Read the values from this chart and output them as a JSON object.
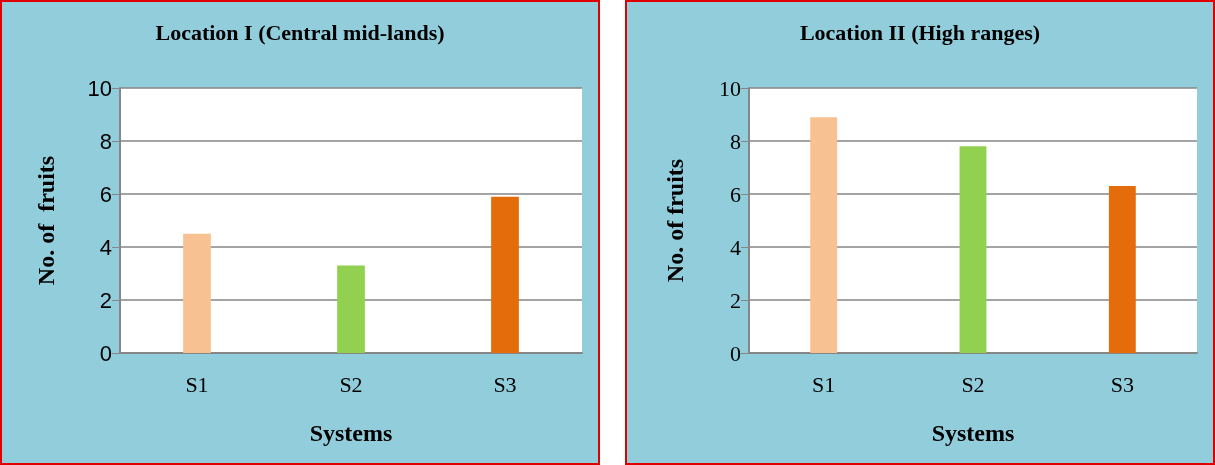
{
  "chart_data": [
    {
      "type": "bar",
      "title": "Location I (Central mid-lands)",
      "xlabel": "Systems",
      "ylabel": "No. of  fruits",
      "categories": [
        "S1",
        "S2",
        "S3"
      ],
      "values": [
        4.5,
        3.3,
        5.9
      ],
      "colors": [
        "#f8c191",
        "#92d050",
        "#e46c0a"
      ],
      "ylim": [
        0,
        10
      ],
      "yticks": [
        0,
        2,
        4,
        6,
        8,
        10
      ],
      "grid": "y"
    },
    {
      "type": "bar",
      "title": "Location II (High ranges)",
      "xlabel": "Systems",
      "ylabel": "No. of fruits",
      "categories": [
        "S1",
        "S2",
        "S3"
      ],
      "values": [
        8.9,
        7.8,
        6.3
      ],
      "colors": [
        "#f8c191",
        "#92d050",
        "#e46c0a"
      ],
      "ylim": [
        0,
        10
      ],
      "yticks": [
        0,
        2,
        4,
        6,
        8,
        10
      ],
      "grid": "y"
    }
  ]
}
